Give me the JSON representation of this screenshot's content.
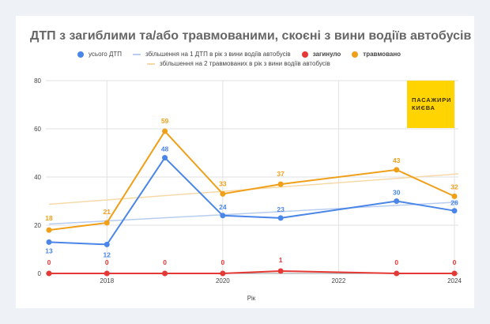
{
  "chart_data": {
    "type": "line",
    "title": "ДТП з загиблими та/або травмованими, скоєні з вини водіїв автобусів",
    "xlabel": "Рік",
    "ylabel": "",
    "x": [
      2017,
      2018,
      2019,
      2020,
      2021,
      2022,
      2023,
      2024
    ],
    "xticks": [
      "2018",
      "2020",
      "2022",
      "2024"
    ],
    "yticks": [
      "0",
      "20",
      "40",
      "60",
      "80"
    ],
    "ylim": [
      0,
      80
    ],
    "xlim": [
      2017,
      2024
    ],
    "grid": true,
    "series": [
      {
        "name": "усього ДТП",
        "color": "#4a86e8",
        "values": [
          13,
          12,
          48,
          24,
          23,
          null,
          30,
          26
        ]
      },
      {
        "name": "загинуло",
        "color": "#e53935",
        "values": [
          0,
          0,
          0,
          0,
          1,
          null,
          0,
          0
        ]
      },
      {
        "name": "травмовано",
        "color": "#f09f19",
        "values": [
          18,
          21,
          59,
          33,
          37,
          null,
          43,
          32
        ]
      }
    ],
    "trendlines": [
      {
        "name": "збільшення на 1 ДТП в рік з вини водіїв автобусів",
        "color": "#b8cdf0",
        "start": [
          2017,
          20.5
        ],
        "end": [
          2024,
          29.5
        ]
      },
      {
        "name": "збільшення на 2 травмованих в рік з вини водіїв автобусів",
        "color": "#f7d9a8",
        "start": [
          2017,
          28.7
        ],
        "end": [
          2024,
          41.2
        ]
      }
    ],
    "legend_position": "top"
  },
  "legend": {
    "total": "усього ДТП",
    "trend1": "збільшення на 1 ДТП в рік з вини водіїв автобусів",
    "killed": "загинуло",
    "injured": "травмовано",
    "trend2": "збільшення на 2 травмованих в рік з вини водіїв автобусів"
  },
  "logo_text": "ПАСАЖИРИ КИЄВА"
}
